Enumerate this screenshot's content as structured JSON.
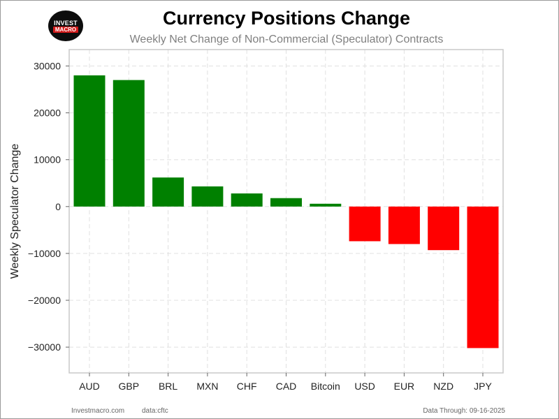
{
  "logo": {
    "top_text": "INVEST",
    "bottom_text": "MACRO"
  },
  "footer": {
    "site": "Investmacro.com",
    "source": "data:cftc",
    "data_through": "Data Through: 09-16-2025"
  },
  "colors": {
    "positive": "#008000",
    "negative": "#ff0000",
    "grid": "#e0e0e0",
    "axis": "#c8c8c8"
  },
  "chart_data": {
    "type": "bar",
    "title": "Currency Positions Change",
    "subtitle": "Weekly Net Change of Non-Commercial (Speculator) Contracts",
    "xlabel": "",
    "ylabel": "Weekly Speculator Change",
    "categories": [
      "AUD",
      "GBP",
      "BRL",
      "MXN",
      "CHF",
      "CAD",
      "Bitcoin",
      "USD",
      "EUR",
      "NZD",
      "JPY"
    ],
    "values": [
      28000,
      27000,
      6200,
      4300,
      2800,
      1800,
      600,
      -7400,
      -8000,
      -9300,
      -30200
    ],
    "ylim": [
      -35500,
      33500
    ],
    "yticks": [
      -30000,
      -20000,
      -10000,
      0,
      10000,
      20000,
      30000
    ],
    "ytick_labels": [
      "−30000",
      "−20000",
      "−10000",
      "0",
      "10000",
      "20000",
      "30000"
    ],
    "grid": true,
    "legend": "none"
  }
}
